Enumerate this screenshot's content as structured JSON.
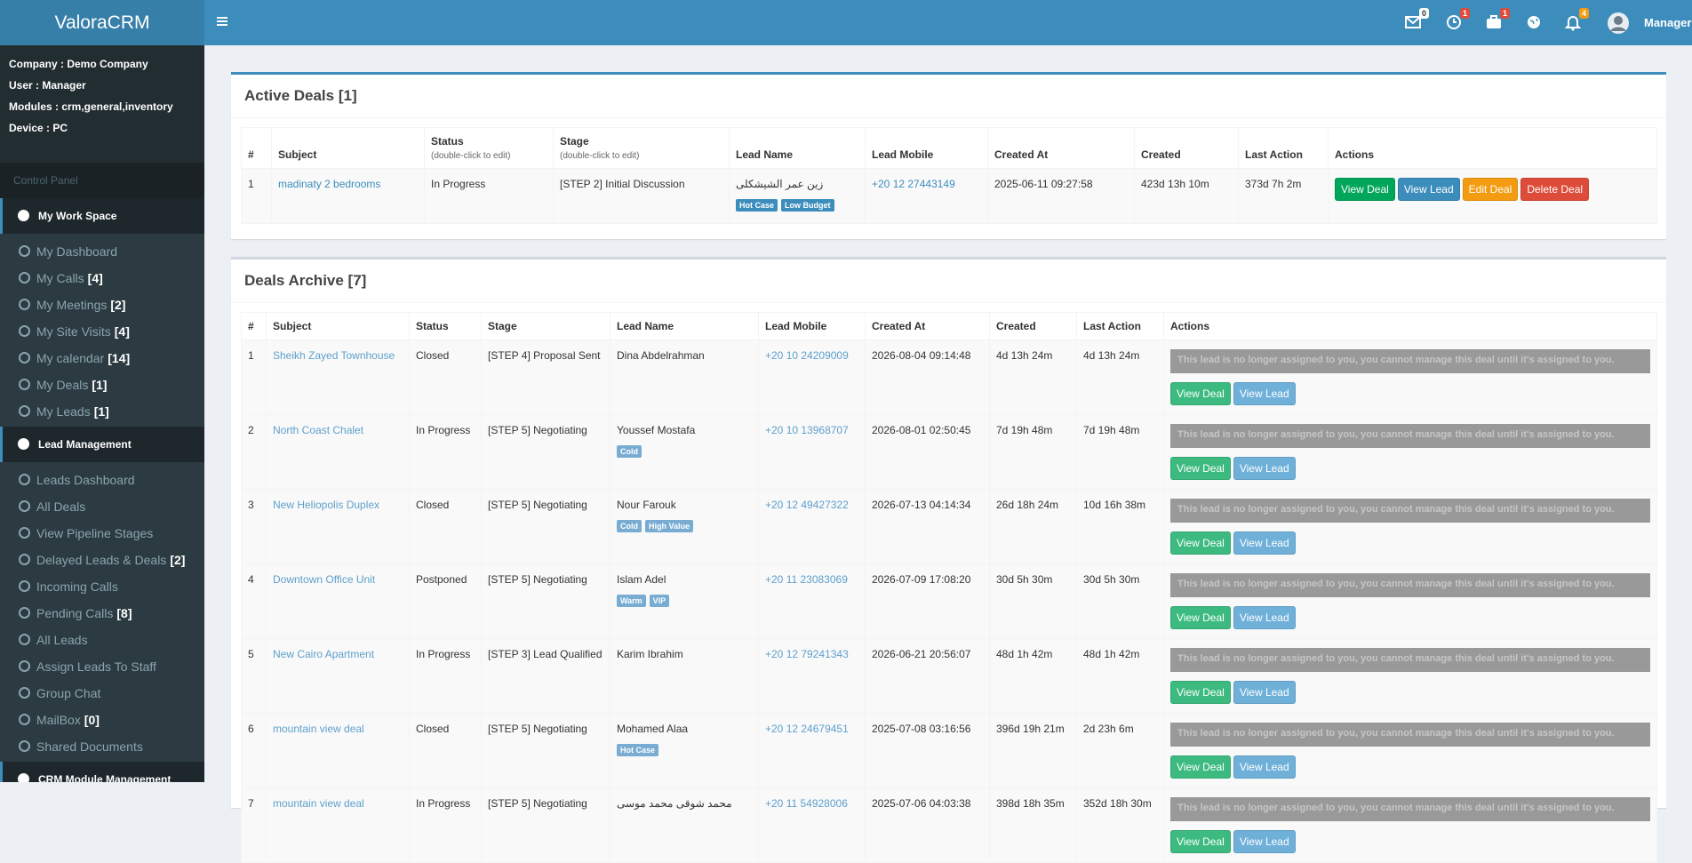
{
  "brand": "ValoraCRM",
  "topbar": {
    "badges": [
      "0",
      "1",
      "1",
      "4"
    ],
    "user": "Manager"
  },
  "sidebar": {
    "info": [
      "Company : Demo Company",
      "User : Manager",
      "Modules : crm,general,inventory",
      "Device : PC"
    ],
    "section": "Control Panel",
    "groups": [
      {
        "title": "My Work Space",
        "items": [
          {
            "label": "My Dashboard"
          },
          {
            "label": "My Calls",
            "count": "[4]"
          },
          {
            "label": "My Meetings",
            "count": "[2]"
          },
          {
            "label": "My Site Visits",
            "count": "[4]"
          },
          {
            "label": "My calendar",
            "count": "[14]"
          },
          {
            "label": "My Deals",
            "count": "[1]"
          },
          {
            "label": "My Leads",
            "count": "[1]"
          }
        ]
      },
      {
        "title": "Lead Management",
        "items": [
          {
            "label": "Leads Dashboard"
          },
          {
            "label": "All Deals"
          },
          {
            "label": "View Pipeline Stages"
          },
          {
            "label": "Delayed Leads & Deals",
            "count": "[2]"
          },
          {
            "label": "Incoming Calls"
          },
          {
            "label": "Pending Calls",
            "count": "[8]"
          },
          {
            "label": "All Leads"
          },
          {
            "label": "Assign Leads To Staff"
          },
          {
            "label": "Group Chat"
          },
          {
            "label": "MailBox",
            "count": "[0]"
          },
          {
            "label": "Shared Documents"
          }
        ]
      },
      {
        "title": "CRM Module Management",
        "items": []
      }
    ]
  },
  "active": {
    "title": "Active Deals [1]",
    "headers": [
      "#",
      "Subject",
      {
        "label": "Status",
        "note": "(double-click to edit)"
      },
      {
        "label": "Stage",
        "note": "(double-click to edit)"
      },
      "Lead Name",
      "Lead Mobile",
      "Created At",
      "Created",
      "Last Action",
      "Actions"
    ],
    "buttons": [
      "View Deal",
      "View Lead",
      "Edit Deal",
      "Delete Deal"
    ],
    "rows": [
      {
        "num": 1,
        "subject": "madinaty 2 bedrooms",
        "status": "In Progress",
        "stage": "[STEP 2] Initial Discussion",
        "lead": "زين عمر الشيشكلى",
        "tags": [
          "Hot Case",
          "Low Budget"
        ],
        "mobile": "+20 12 27443149",
        "created_at": "2025-06-11 09:27:58",
        "created": "423d 13h 10m",
        "last_action": "373d 7h 2m"
      }
    ]
  },
  "archive": {
    "title": "Deals Archive [7]",
    "headers": [
      "#",
      "Subject",
      "Status",
      "Stage",
      "Lead Name",
      "Lead Mobile",
      "Created At",
      "Created",
      "Last Action",
      "Actions"
    ],
    "notice": "This lead is no longer assigned to you, you cannot manage this deal until it's assigned to you.",
    "buttons": [
      "View Deal",
      "View Lead"
    ],
    "rows": [
      {
        "num": 1,
        "subject": "Sheikh Zayed Townhouse",
        "status": "Closed",
        "stage": "[STEP 4] Proposal Sent",
        "lead": "Dina Abdelrahman",
        "tags": [],
        "mobile": "+20 10 24209009",
        "created_at": "2026-08-04 09:14:48",
        "created": "4d 13h 24m",
        "last_action": "4d 13h 24m"
      },
      {
        "num": 2,
        "subject": "North Coast Chalet",
        "status": "In Progress",
        "stage": "[STEP 5] Negotiating",
        "lead": "Youssef Mostafa",
        "tags": [
          "Cold"
        ],
        "mobile": "+20 10 13968707",
        "created_at": "2026-08-01 02:50:45",
        "created": "7d 19h 48m",
        "last_action": "7d 19h 48m"
      },
      {
        "num": 3,
        "subject": "New Heliopolis Duplex",
        "status": "Closed",
        "stage": "[STEP 5] Negotiating",
        "lead": "Nour Farouk",
        "tags": [
          "Cold",
          "High Value"
        ],
        "mobile": "+20 12 49427322",
        "created_at": "2026-07-13 04:14:34",
        "created": "26d 18h 24m",
        "last_action": "10d 16h 38m"
      },
      {
        "num": 4,
        "subject": "Downtown Office Unit",
        "status": "Postponed",
        "stage": "[STEP 5] Negotiating",
        "lead": "Islam Adel",
        "tags": [
          "Warm",
          "VIP"
        ],
        "mobile": "+20 11 23083069",
        "created_at": "2026-07-09 17:08:20",
        "created": "30d 5h 30m",
        "last_action": "30d 5h 30m"
      },
      {
        "num": 5,
        "subject": "New Cairo Apartment",
        "status": "In Progress",
        "stage": "[STEP 3] Lead Qualified",
        "lead": "Karim Ibrahim",
        "tags": [],
        "mobile": "+20 12 79241343",
        "created_at": "2026-06-21 20:56:07",
        "created": "48d 1h 42m",
        "last_action": "48d 1h 42m"
      },
      {
        "num": 6,
        "subject": "mountain view deal",
        "status": "Closed",
        "stage": "[STEP 5] Negotiating",
        "lead": "Mohamed Alaa",
        "tags": [
          "Hot Case"
        ],
        "mobile": "+20 12 24679451",
        "created_at": "2025-07-08 03:16:56",
        "created": "396d 19h 21m",
        "last_action": "2d 23h 6m"
      },
      {
        "num": 7,
        "subject": "mountain view deal",
        "status": "In Progress",
        "stage": "[STEP 5] Negotiating",
        "lead": "محمد شوقى محمد موسى",
        "tags": [],
        "mobile": "+20 11 54928006",
        "created_at": "2025-07-06 04:03:38",
        "created": "398d 18h 35m",
        "last_action": "352d 18h 30m"
      }
    ]
  }
}
